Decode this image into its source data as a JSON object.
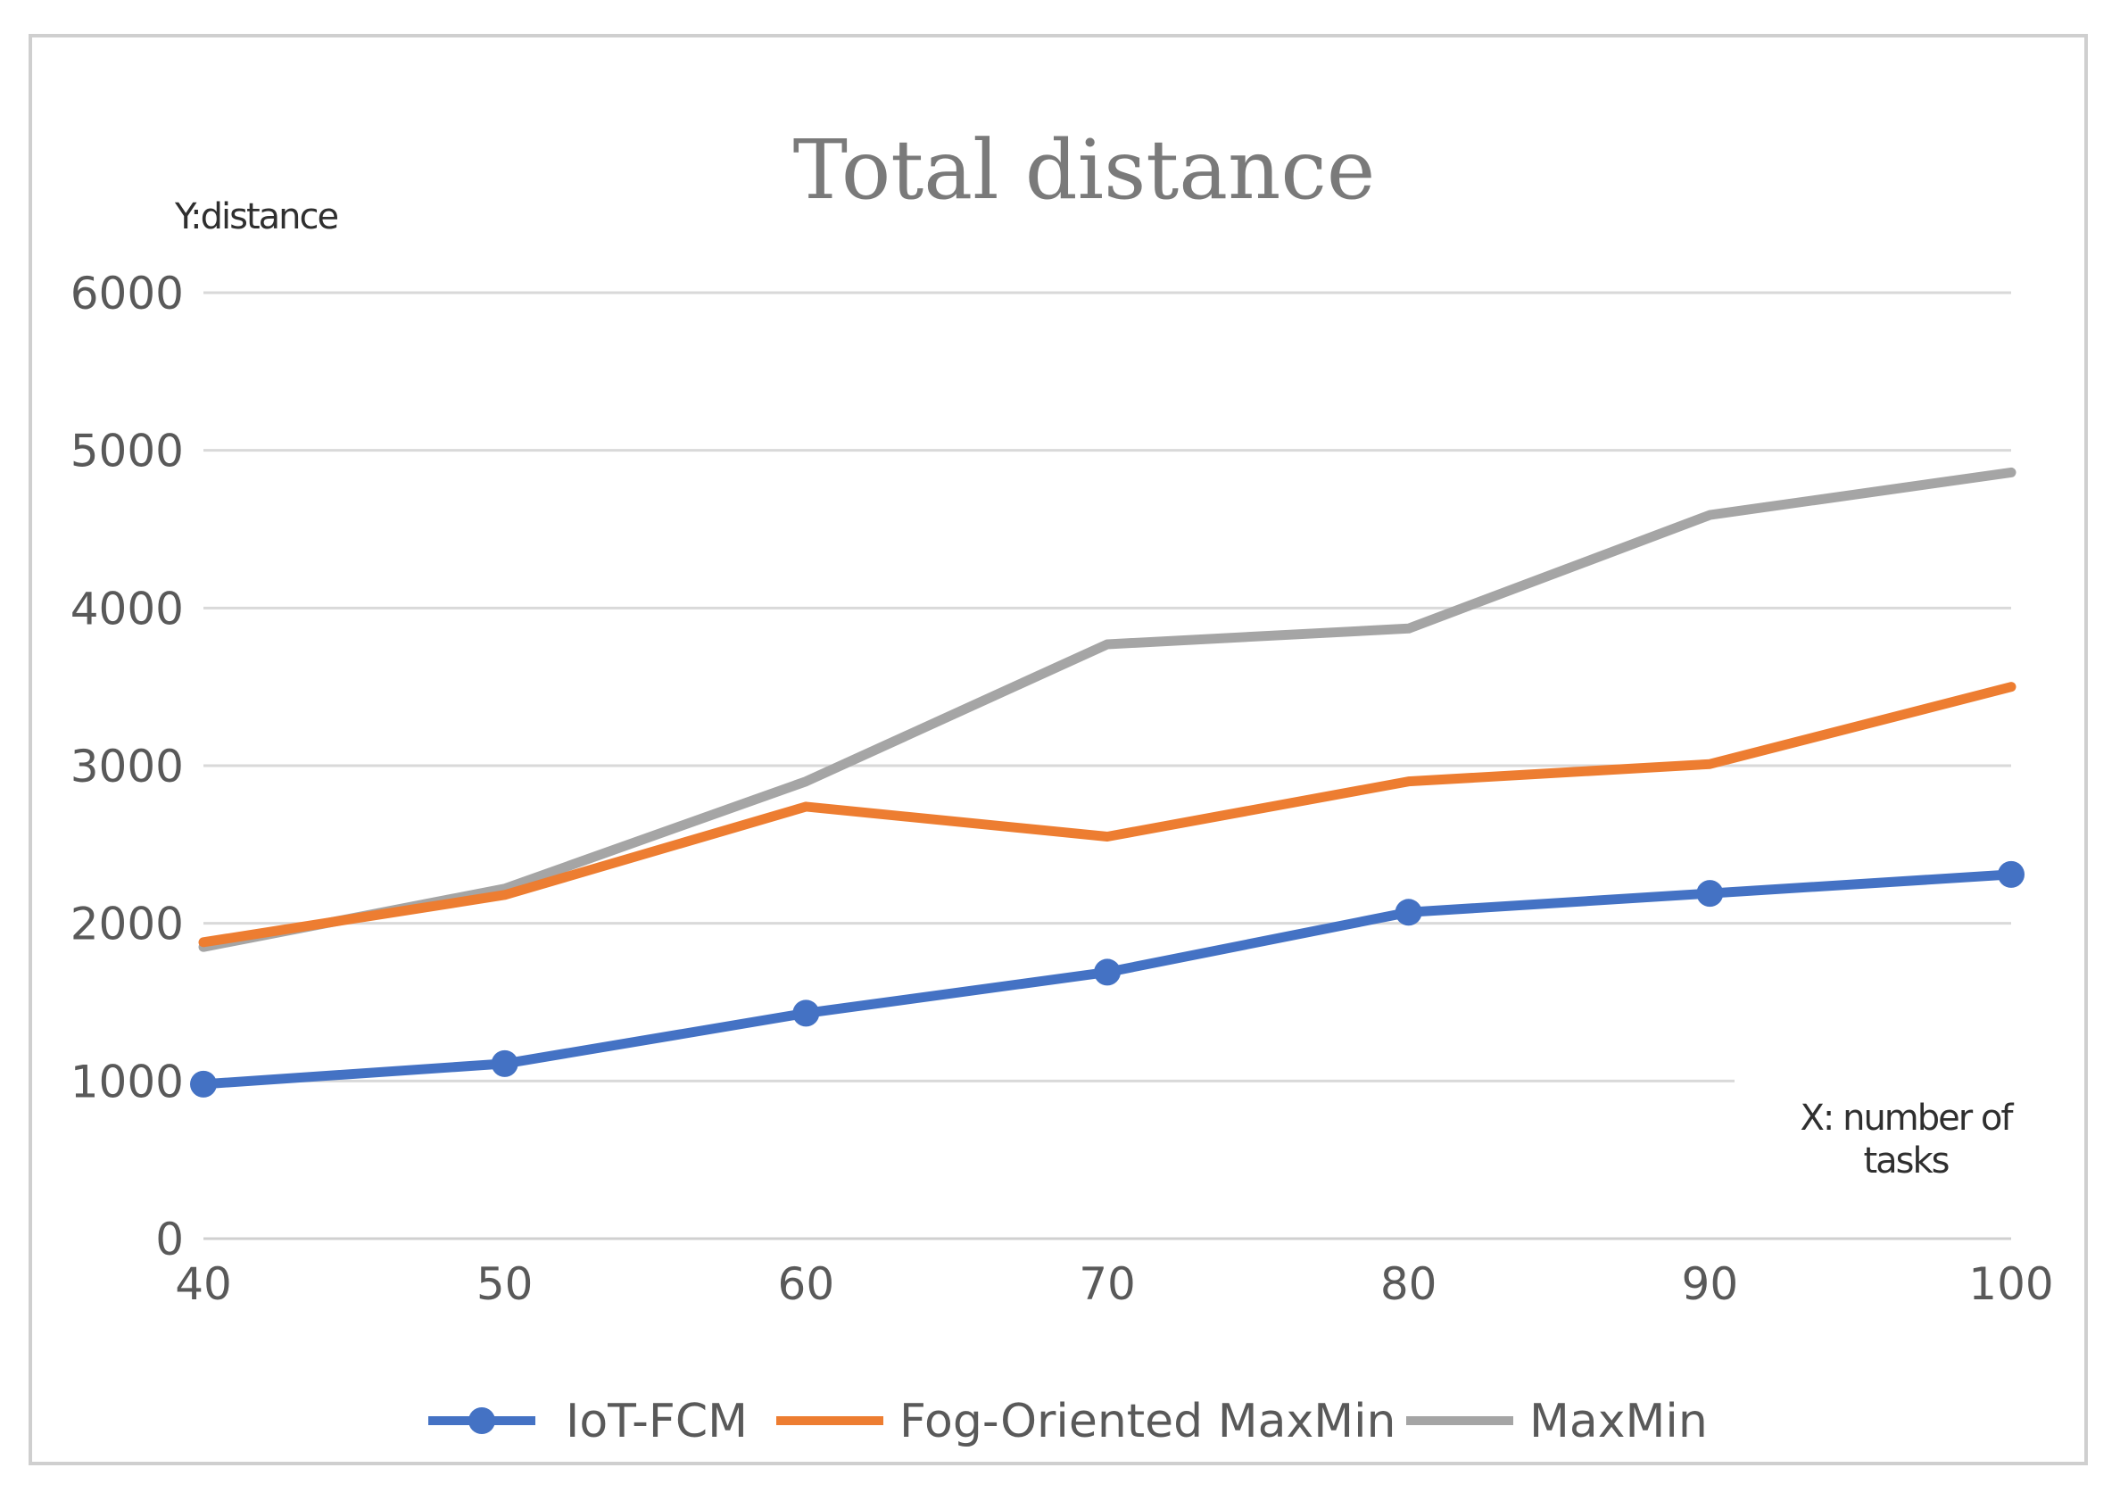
{
  "chart_data": {
    "type": "line",
    "title": "Total distance",
    "ylabel": "Y:distance",
    "xlabel_lines": [
      "X: number of",
      "tasks"
    ],
    "x": [
      40,
      50,
      60,
      70,
      80,
      90,
      100
    ],
    "x_tick_labels": [
      "40",
      "50",
      "60",
      "70",
      "80",
      "90",
      "100"
    ],
    "y_ticks": [
      0,
      1000,
      2000,
      3000,
      4000,
      5000,
      6000
    ],
    "y_tick_labels": [
      "0",
      "1000",
      "2000",
      "3000",
      "4000",
      "5000",
      "6000"
    ],
    "ylim": [
      0,
      6000
    ],
    "xlim": [
      40,
      100
    ],
    "grid": true,
    "legend_position": "bottom",
    "series": [
      {
        "name": "IoT-FCM",
        "color": "#4472c4",
        "markers": true,
        "values": [
          980,
          1110,
          1430,
          1690,
          2070,
          2190,
          2310
        ]
      },
      {
        "name": "Fog-Oriented MaxMin",
        "color": "#ed7d31",
        "markers": false,
        "values": [
          1880,
          2180,
          2740,
          2550,
          2900,
          3010,
          3500
        ]
      },
      {
        "name": "MaxMin",
        "color": "#a5a5a5",
        "markers": false,
        "values": [
          1850,
          2220,
          2900,
          3770,
          3870,
          4590,
          4860
        ]
      }
    ]
  }
}
